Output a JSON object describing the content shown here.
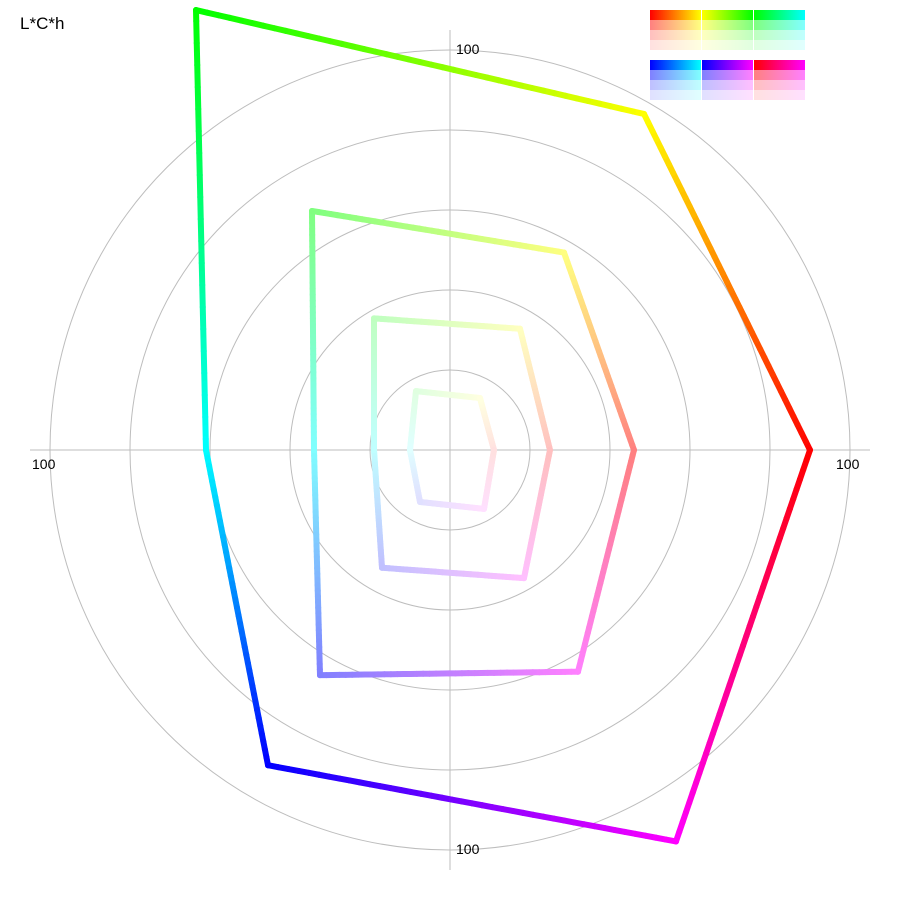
{
  "chart_data": {
    "type": "polar-line",
    "title": "L*C*h",
    "radial_tick_label": "100",
    "radial_max": 100,
    "rings": [
      20,
      40,
      60,
      80,
      100
    ],
    "angle_convention": "0 deg = +x (right), counterclockwise, y up",
    "grid": true,
    "series": [
      {
        "points": [
          {
            "hue": 0,
            "chroma": 90,
            "color": "#ff0000"
          },
          {
            "hue": 60,
            "chroma": 97,
            "color": "#ffff00"
          },
          {
            "hue": 120,
            "chroma": 127,
            "color": "#00ff00"
          },
          {
            "hue": 180,
            "chroma": 61,
            "color": "#00ffff"
          },
          {
            "hue": 240,
            "chroma": 91,
            "color": "#0000ff"
          },
          {
            "hue": 300,
            "chroma": 113,
            "color": "#ff00ff"
          }
        ],
        "gradient_stops": [
          {
            "hue": 0,
            "color": "#ff0000"
          },
          {
            "hue": 18,
            "color": "#ff0040"
          },
          {
            "hue": 32,
            "color": "#ff0080"
          },
          {
            "hue": 48,
            "color": "#ff5000"
          },
          {
            "hue": 60,
            "color": "#ffd000"
          },
          {
            "hue": 105,
            "color": "#ffff00"
          },
          {
            "hue": 130,
            "color": "#00ff00"
          },
          {
            "hue": 165,
            "color": "#00ff80"
          },
          {
            "hue": 200,
            "color": "#00ffff"
          },
          {
            "hue": 235,
            "color": "#0080ff"
          },
          {
            "hue": 270,
            "color": "#0000ff"
          },
          {
            "hue": 285,
            "color": "#8000ff"
          },
          {
            "hue": 300,
            "color": "#ff00ff"
          },
          {
            "hue": 330,
            "color": "#ff0090"
          },
          {
            "hue": 360,
            "color": "#ff0000"
          }
        ]
      },
      {
        "points": [
          {
            "hue": 0,
            "chroma": 46,
            "color": "#ff8080"
          },
          {
            "hue": 60,
            "chroma": 57,
            "color": "#ffff80"
          },
          {
            "hue": 120,
            "chroma": 69,
            "color": "#80ff80"
          },
          {
            "hue": 180,
            "chroma": 34,
            "color": "#80ffff"
          },
          {
            "hue": 240,
            "chroma": 65,
            "color": "#8080ff"
          },
          {
            "hue": 300,
            "chroma": 64,
            "color": "#ff80ff"
          }
        ]
      },
      {
        "points": [
          {
            "hue": 0,
            "chroma": 25,
            "color": "#ffc0c0"
          },
          {
            "hue": 60,
            "chroma": 35,
            "color": "#ffffc0"
          },
          {
            "hue": 120,
            "chroma": 38,
            "color": "#c0ffc0"
          },
          {
            "hue": 180,
            "chroma": 19,
            "color": "#c0ffff"
          },
          {
            "hue": 240,
            "chroma": 34,
            "color": "#c0c0ff"
          },
          {
            "hue": 300,
            "chroma": 37,
            "color": "#ffc0ff"
          }
        ]
      },
      {
        "points": [
          {
            "hue": 0,
            "chroma": 11,
            "color": "#ffe0e0"
          },
          {
            "hue": 60,
            "chroma": 15,
            "color": "#ffffe0"
          },
          {
            "hue": 120,
            "chroma": 17,
            "color": "#e0ffe0"
          },
          {
            "hue": 180,
            "chroma": 10,
            "color": "#e0ffff"
          },
          {
            "hue": 240,
            "chroma": 15,
            "color": "#e0e0ff"
          },
          {
            "hue": 300,
            "chroma": 17,
            "color": "#ffe0ff"
          }
        ]
      }
    ]
  },
  "swatch_legend": {
    "groups": [
      {
        "hues": [
          "#ff0000",
          "#ffff00"
        ]
      },
      {
        "hues": [
          "#ffff00",
          "#00ff00"
        ]
      },
      {
        "hues": [
          "#00ff00",
          "#00ffff"
        ]
      },
      {
        "hues": [
          "#0000ff",
          "#00ffff"
        ]
      },
      {
        "hues": [
          "#0000ff",
          "#ff00ff"
        ]
      },
      {
        "hues": [
          "#ff0000",
          "#ff00ff"
        ]
      }
    ],
    "tints": [
      1,
      0.5,
      0.25,
      0.12
    ]
  }
}
